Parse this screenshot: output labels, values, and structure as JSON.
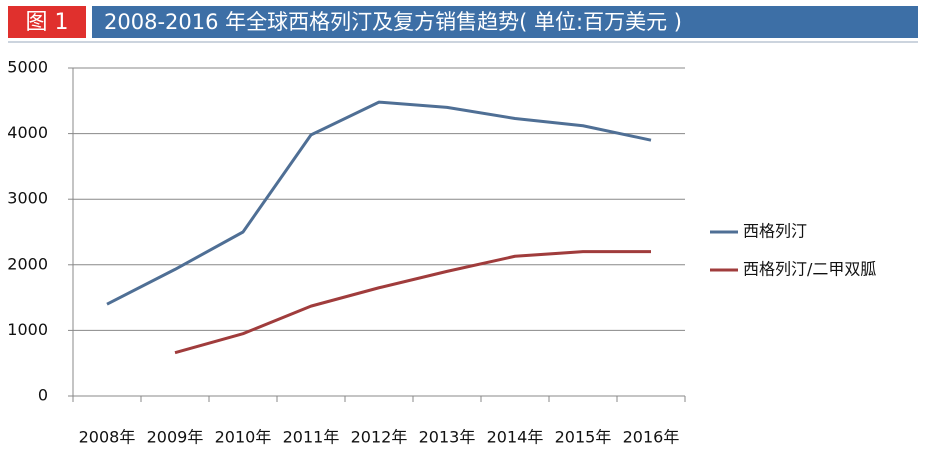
{
  "chart_data": {
    "type": "line",
    "figure_label": "图 1",
    "title": "2008-2016 年全球西格列汀及复方销售趋势( 单位:百万美元 )",
    "categories": [
      "2008年",
      "2009年",
      "2010年",
      "2011年",
      "2012年",
      "2013年",
      "2014年",
      "2015年",
      "2016年"
    ],
    "series": [
      {
        "name": "西格列汀",
        "color": "#4f6f95",
        "values": [
          1400,
          1930,
          2500,
          3980,
          4480,
          4400,
          4230,
          4120,
          3900
        ]
      },
      {
        "name": "西格列汀/二甲双胍",
        "color": "#a03c3c",
        "values": [
          null,
          660,
          950,
          1370,
          1650,
          1900,
          2130,
          2200,
          2200
        ]
      }
    ],
    "ylim": [
      0,
      5000
    ],
    "yticks": [
      0,
      1000,
      2000,
      3000,
      4000,
      5000
    ],
    "grid": true,
    "legend": "right"
  }
}
